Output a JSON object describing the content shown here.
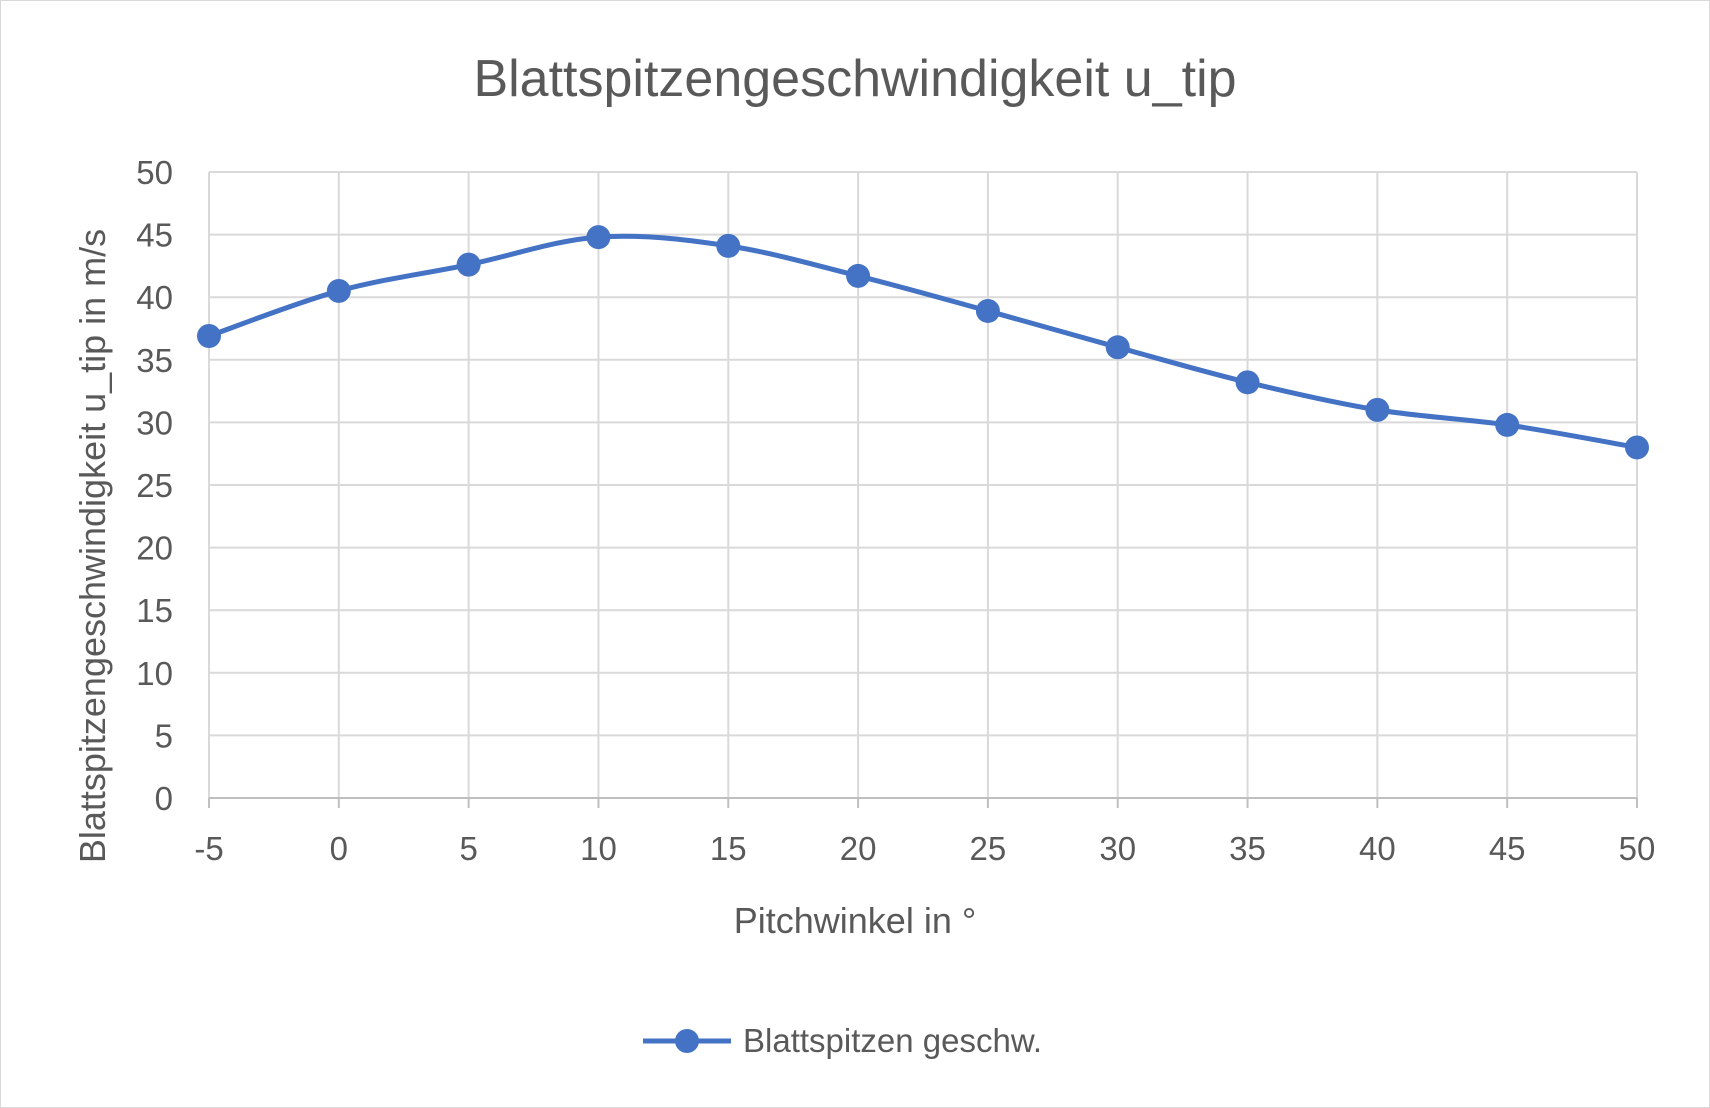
{
  "chart_data": {
    "type": "line",
    "title": "Blattspitzengeschwindigkeit u_tip",
    "xlabel": "Pitchwinkel in °",
    "ylabel": "Blattspitzengeschwindigkeit u_tip in m/s",
    "x": [
      -5,
      0,
      5,
      10,
      15,
      20,
      25,
      30,
      35,
      40,
      45,
      50
    ],
    "series": [
      {
        "name": "Blattspitzen geschw.",
        "values": [
          36.9,
          40.5,
          42.6,
          44.8,
          44.1,
          41.7,
          38.9,
          36.0,
          33.2,
          31.0,
          29.8,
          28.0
        ],
        "color": "#4472c4",
        "smooth": true,
        "marker": "circle"
      }
    ],
    "xlim": [
      -5,
      50
    ],
    "ylim": [
      0,
      50
    ],
    "xticks": [
      "-5",
      "0",
      "5",
      "10",
      "15",
      "20",
      "25",
      "30",
      "35",
      "40",
      "45",
      "50"
    ],
    "yticks": [
      "0",
      "5",
      "10",
      "15",
      "20",
      "25",
      "30",
      "35",
      "40",
      "45",
      "50"
    ],
    "grid": true,
    "legend_position": "bottom"
  }
}
